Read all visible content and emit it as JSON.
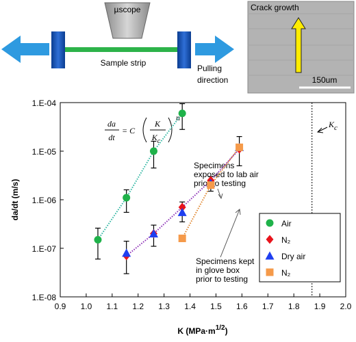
{
  "schematic": {
    "microscope": "µscope",
    "strip": "Sample strip",
    "pulling": [
      "Pulling",
      "direction"
    ]
  },
  "micrograph": {
    "title": "Crack growth",
    "scale_bar": "150um"
  },
  "chart_data": {
    "type": "scatter",
    "xlabel": {
      "text": "K (MPa·m",
      "sup": "1/2",
      "tail": ")"
    },
    "ylabel": "da/dt (m/s)",
    "xlim": [
      0.9,
      2.0
    ],
    "xticks": [
      0.9,
      {
        "value": 1,
        "label": "1.0"
      },
      1.1,
      1.2,
      1.3,
      1.4,
      1.5,
      1.6,
      1.7,
      1.8,
      1.9,
      {
        "value": 2,
        "label": "2.0"
      }
    ],
    "ylim": [
      1e-08,
      0.0001
    ],
    "log_y": true,
    "yticks": [
      {
        "value": 1e-08,
        "label": "1.E-08"
      },
      {
        "value": 1e-07,
        "label": "1.E-07"
      },
      {
        "value": 1e-06,
        "label": "1.E-06"
      },
      {
        "value": 1e-05,
        "label": "1.E-05"
      },
      {
        "value": 0.0001,
        "label": "1.E-04"
      }
    ],
    "legend": "lower right",
    "series": [
      {
        "name": "Air",
        "color": "#1fb24a",
        "marker": "circle",
        "fit_color": "#2bb5a0",
        "x": [
          1.045,
          1.155,
          1.26,
          1.37
        ],
        "values": [
          1.5e-07,
          1.1e-06,
          1e-05,
          6e-05
        ],
        "lower": [
          6e-08,
          5.5e-07,
          4.5e-06,
          2.8e-05
        ],
        "upper": [
          2.6e-07,
          1.6e-06,
          1.6e-05,
          9.5e-05
        ]
      },
      {
        "name": "N₂",
        "color": "#e8141c",
        "marker": "diamond",
        "fit_color": "#8a2bb5",
        "x": [
          1.155,
          1.26,
          1.37,
          1.48,
          1.59
        ],
        "values": [
          7e-08,
          2e-07,
          7e-07,
          2.5e-06,
          1.1e-05
        ],
        "lower": [
          3e-08,
          1.1e-07,
          3.5e-07,
          1.5e-06,
          5e-06
        ],
        "upper": [
          1.4e-07,
          3e-07,
          9e-07,
          3e-06,
          2e-05
        ]
      },
      {
        "name": "Dry air",
        "color": "#1f3ff0",
        "marker": "triangle",
        "x": [
          1.155,
          1.26,
          1.37,
          1.48,
          1.59
        ],
        "values": [
          8e-08,
          2e-07,
          5.5e-07,
          2.2e-06,
          1.2e-05
        ]
      },
      {
        "name": "N₂",
        "color": "#f59a4a",
        "marker": "square",
        "fit_color": "#e0832a",
        "x": [
          1.37,
          1.48,
          1.59
        ],
        "values": [
          1.6e-07,
          2e-06,
          1.2e-05
        ]
      }
    ],
    "kc": 1.87,
    "kc_label": {
      "text": "K",
      "sub": "c"
    },
    "equation": {
      "num": "da",
      "den": "dt",
      "eq": "= C",
      "k": "K",
      "kc": "K",
      "kc_sub": "c",
      "exp": "n"
    },
    "annotations": [
      [
        "Specimens",
        "exposed to lab air",
        "prior to testing"
      ],
      [
        "Specimens kept",
        "in glove box",
        "prior to testing"
      ]
    ]
  }
}
